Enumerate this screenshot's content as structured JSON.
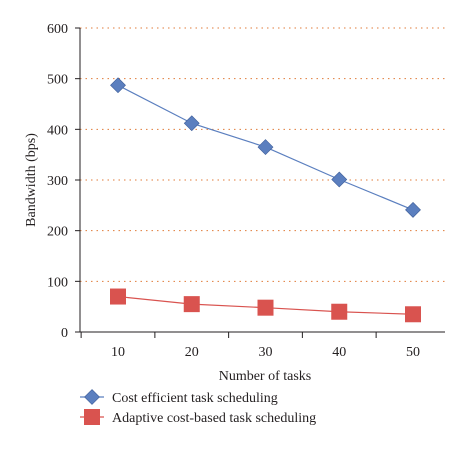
{
  "chart_data": {
    "type": "line",
    "xlabel": "Number of tasks",
    "ylabel": "Bandwidth (bps)",
    "x": [
      10,
      20,
      30,
      40,
      50
    ],
    "ylim": [
      0,
      600
    ],
    "yticks": [
      0,
      100,
      200,
      300,
      400,
      500,
      600
    ],
    "grid": "horizontal dotted",
    "legend_position": "bottom-left",
    "series": [
      {
        "name": "Cost efficient task scheduling",
        "values": [
          487,
          412,
          365,
          301,
          241
        ],
        "color": "#5b7fbf",
        "marker": "diamond"
      },
      {
        "name": "Adaptive cost-based task scheduling",
        "values": [
          70,
          55,
          48,
          40,
          35
        ],
        "color": "#d9534f",
        "marker": "square"
      }
    ],
    "grid_color": "#e07b39"
  }
}
